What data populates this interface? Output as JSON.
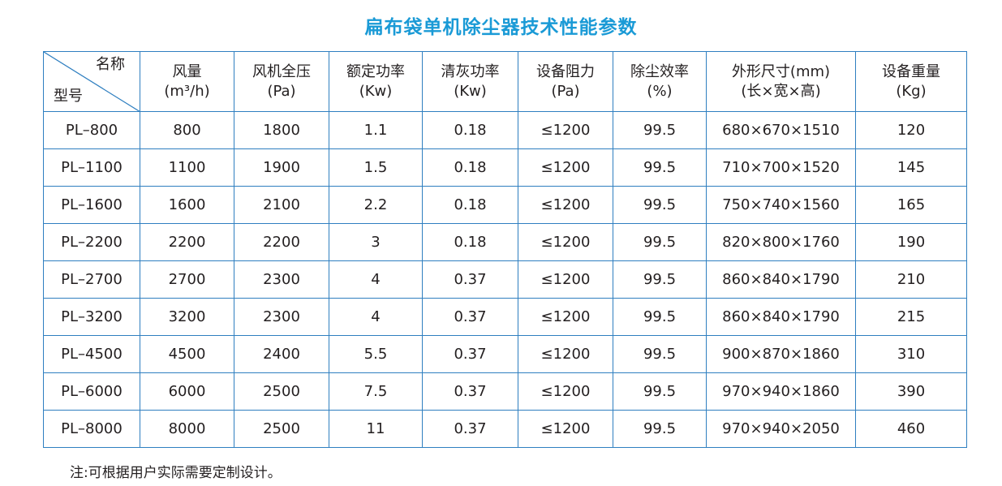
{
  "title": "扁布袋单机除尘器技术性能参数",
  "table": {
    "corner": {
      "top": "名称",
      "bottom": "型号"
    },
    "header": [
      [
        "风量",
        "(m³/h)"
      ],
      [
        "风机全压",
        "(Pa)"
      ],
      [
        "额定功率",
        "(Kw)"
      ],
      [
        "清灰功率",
        "(Kw)"
      ],
      [
        "设备阻力",
        "(Pa)"
      ],
      [
        "除尘效率",
        "(%)"
      ],
      [
        "外形尺寸(mm)",
        "(长×宽×高)"
      ],
      [
        "设备重量",
        "(Kg)"
      ]
    ],
    "rows": [
      [
        "PL–800",
        "800",
        "1800",
        "1.1",
        "0.18",
        "≤1200",
        "99.5",
        "680×670×1510",
        "120"
      ],
      [
        "PL–1100",
        "1100",
        "1900",
        "1.5",
        "0.18",
        "≤1200",
        "99.5",
        "710×700×1520",
        "145"
      ],
      [
        "PL–1600",
        "1600",
        "2100",
        "2.2",
        "0.18",
        "≤1200",
        "99.5",
        "750×740×1560",
        "165"
      ],
      [
        "PL–2200",
        "2200",
        "2200",
        "3",
        "0.18",
        "≤1200",
        "99.5",
        "820×800×1760",
        "190"
      ],
      [
        "PL–2700",
        "2700",
        "2300",
        "4",
        "0.37",
        "≤1200",
        "99.5",
        "860×840×1790",
        "210"
      ],
      [
        "PL–3200",
        "3200",
        "2300",
        "4",
        "0.37",
        "≤1200",
        "99.5",
        "860×840×1790",
        "215"
      ],
      [
        "PL–4500",
        "4500",
        "2400",
        "5.5",
        "0.37",
        "≤1200",
        "99.5",
        "900×870×1860",
        "310"
      ],
      [
        "PL–6000",
        "6000",
        "2500",
        "7.5",
        "0.37",
        "≤1200",
        "99.5",
        "970×940×1860",
        "390"
      ],
      [
        "PL–8000",
        "8000",
        "2500",
        "11",
        "0.37",
        "≤1200",
        "99.5",
        "970×940×2050",
        "460"
      ]
    ]
  },
  "note": "注:可根据用户实际需要定制设计。"
}
